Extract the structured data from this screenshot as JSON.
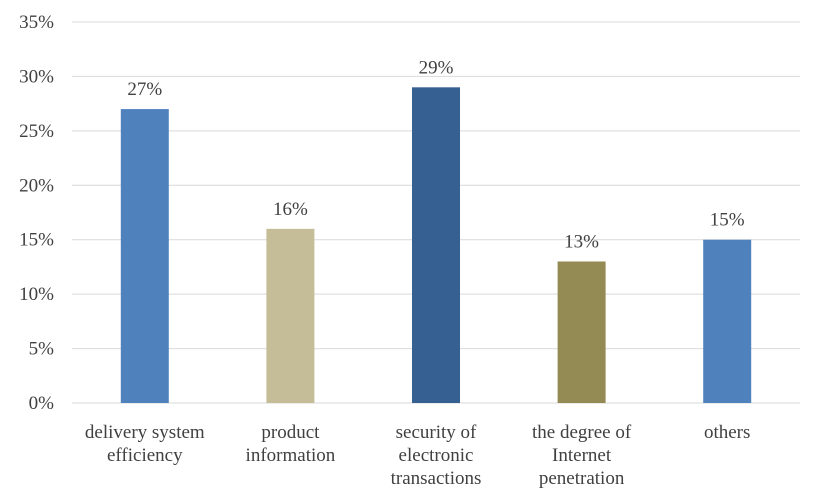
{
  "chart_data": {
    "type": "bar",
    "categories": [
      [
        "delivery system",
        "efficiency"
      ],
      [
        "product",
        "information"
      ],
      [
        "security of",
        "electronic",
        "transactions"
      ],
      [
        "the degree of",
        "Internet",
        "penetration"
      ],
      [
        "others"
      ]
    ],
    "values": [
      27,
      16,
      29,
      13,
      15
    ],
    "data_labels": [
      "27%",
      "16%",
      "29%",
      "13%",
      "15%"
    ],
    "colors": [
      "#4f81bd",
      "#c4bd97",
      "#366092",
      "#948a54",
      "#4f81bd"
    ],
    "ylim": [
      0,
      35
    ],
    "y_ticks": [
      "0%",
      "5%",
      "10%",
      "15%",
      "20%",
      "25%",
      "30%",
      "35%"
    ],
    "grid": true,
    "title": "",
    "xlabel": "",
    "ylabel": ""
  }
}
